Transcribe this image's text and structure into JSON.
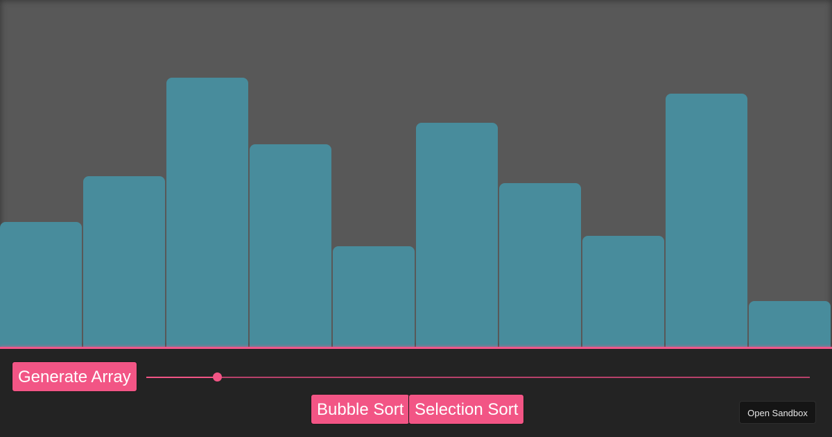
{
  "chart_data": {
    "type": "bar",
    "values": [
      181,
      247,
      389,
      293,
      146,
      324,
      237,
      161,
      366,
      67
    ],
    "ylim": [
      0,
      501
    ],
    "grid": false,
    "bar_color": "#488c9c"
  },
  "controls": {
    "generate_label": "Generate Array",
    "bubble_label": "Bubble Sort",
    "selection_label": "Selection Sort",
    "sandbox_label": "Open Sandbox",
    "array_size_slider": {
      "value_fraction": 0.107
    }
  },
  "colors": {
    "accent": "#f25585",
    "stage_background": "#585858",
    "panel_background": "#232323",
    "bar": "#488c9c"
  }
}
